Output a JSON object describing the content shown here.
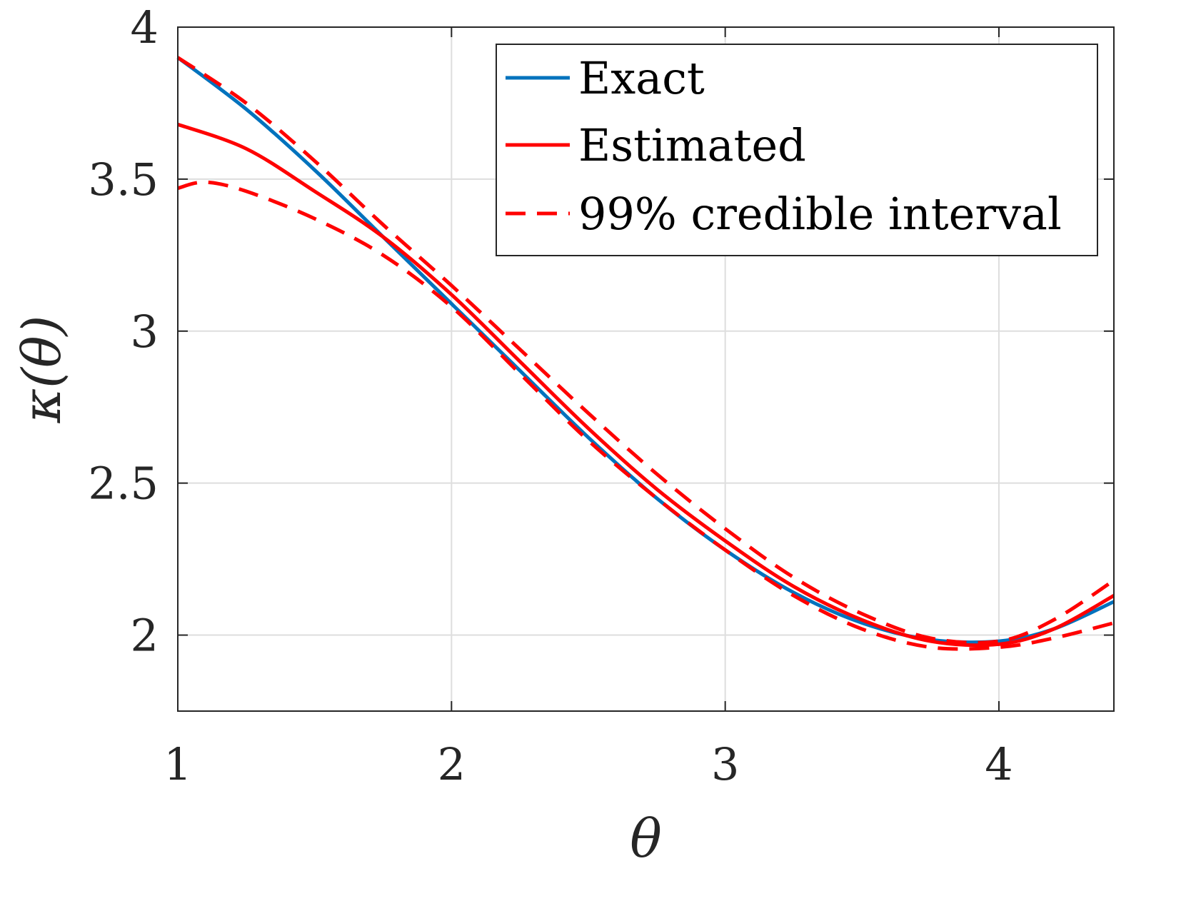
{
  "chart_data": {
    "type": "line",
    "xlabel": "θ",
    "ylabel": "κ(θ)",
    "xlim": [
      1,
      4.42
    ],
    "ylim": [
      1.75,
      4.0
    ],
    "xticks": [
      1,
      2,
      3,
      4
    ],
    "yticks": [
      2,
      2.5,
      3,
      3.5,
      4
    ],
    "xtick_labels": [
      "1",
      "2",
      "3",
      "4"
    ],
    "ytick_labels": [
      "2",
      "2.5",
      "3",
      "3.5",
      "4"
    ],
    "grid": true,
    "legend_position": "top-right",
    "series": [
      {
        "name": "Exact",
        "color": "#0072BD",
        "style": "solid",
        "x": [
          1.0,
          1.25,
          1.5,
          1.75,
          2.0,
          2.25,
          2.5,
          2.75,
          3.0,
          3.25,
          3.5,
          3.75,
          4.0,
          4.2,
          4.42
        ],
        "y": [
          3.9,
          3.73,
          3.53,
          3.31,
          3.09,
          2.87,
          2.65,
          2.45,
          2.28,
          2.14,
          2.04,
          1.985,
          1.98,
          2.02,
          2.11
        ]
      },
      {
        "name": "Estimated",
        "color": "#FF0000",
        "style": "solid",
        "x": [
          1.0,
          1.25,
          1.5,
          1.75,
          2.0,
          2.25,
          2.5,
          2.75,
          3.0,
          3.25,
          3.5,
          3.75,
          4.0,
          4.2,
          4.42
        ],
        "y": [
          3.68,
          3.6,
          3.46,
          3.31,
          3.12,
          2.9,
          2.68,
          2.48,
          2.31,
          2.16,
          2.05,
          1.98,
          1.97,
          2.02,
          2.13
        ]
      },
      {
        "name": "99% credible interval",
        "color": "#FF0000",
        "style": "dashed",
        "x": [
          1.0,
          1.25,
          1.5,
          1.75,
          2.0,
          2.25,
          2.5,
          2.75,
          3.0,
          3.25,
          3.5,
          3.75,
          4.0,
          4.2,
          4.42
        ],
        "y": [
          3.9,
          3.75,
          3.56,
          3.35,
          3.15,
          2.94,
          2.73,
          2.53,
          2.35,
          2.19,
          2.07,
          1.99,
          1.98,
          2.05,
          2.18
        ]
      },
      {
        "name": "",
        "color": "#FF0000",
        "style": "dashed",
        "x": [
          1.0,
          1.1,
          1.25,
          1.5,
          1.75,
          2.0,
          2.25,
          2.5,
          2.75,
          3.0,
          3.25,
          3.5,
          3.75,
          4.0,
          4.2,
          4.42
        ],
        "y": [
          3.47,
          3.49,
          3.46,
          3.37,
          3.25,
          3.08,
          2.86,
          2.64,
          2.45,
          2.28,
          2.13,
          2.02,
          1.96,
          1.96,
          1.99,
          2.04
        ]
      }
    ]
  }
}
